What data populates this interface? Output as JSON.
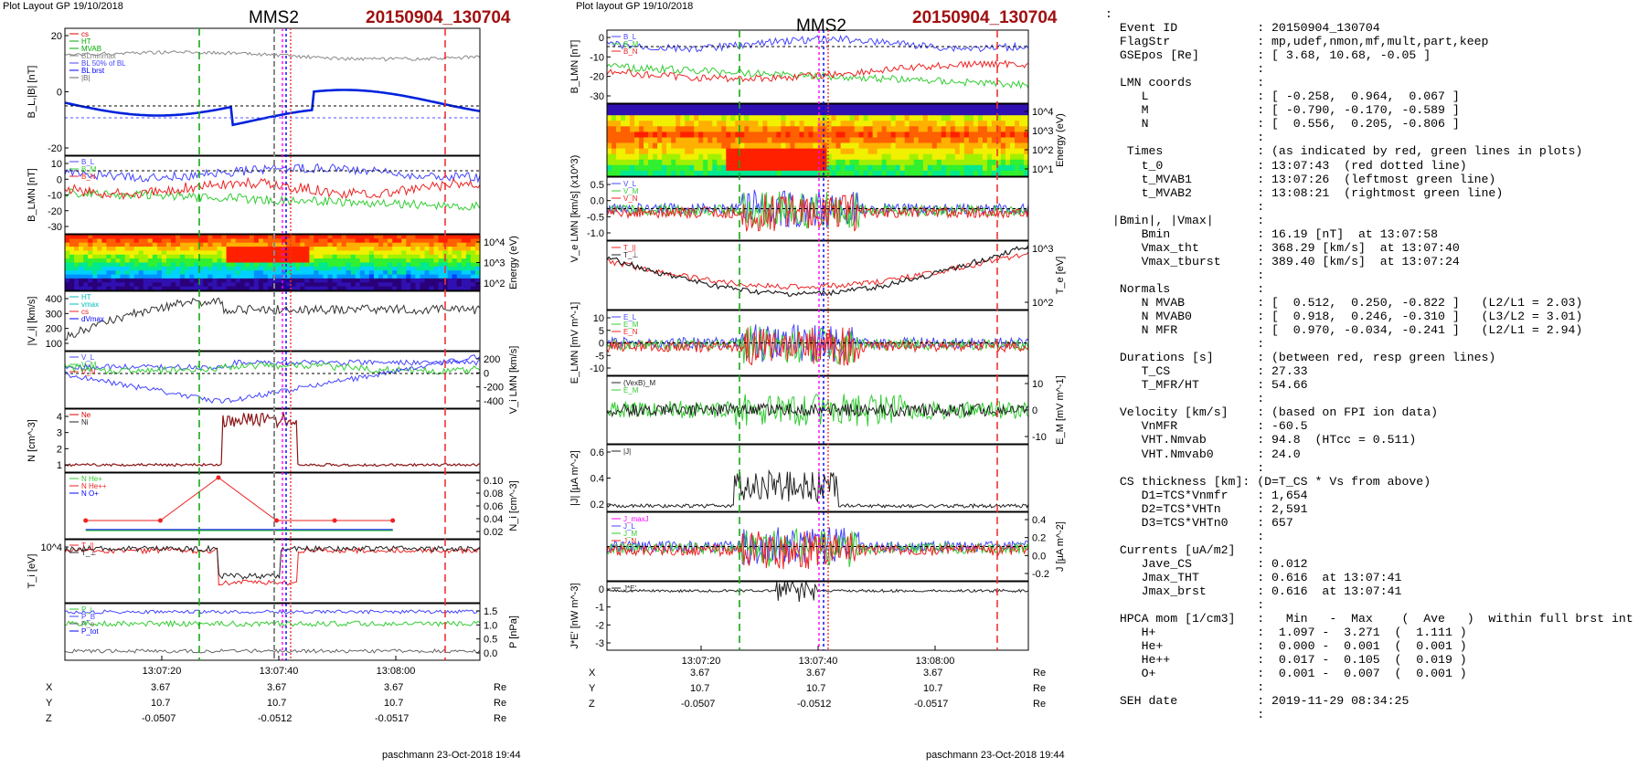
{
  "left": {
    "plot_layout": "Plot Layout GP 19/10/2018",
    "spacecraft": "MMS2",
    "event": "20150904_130704",
    "footer": "paschmann 23-Oct-2018 19:44",
    "time_ticks": [
      "13:07:20",
      "13:07:40",
      "13:08:00"
    ],
    "ephem": [
      {
        "label": "X",
        "values": [
          "3.67",
          "3.67",
          "3.67"
        ],
        "unit": "Re"
      },
      {
        "label": "Y",
        "values": [
          "10.7",
          "10.7",
          "10.7"
        ],
        "unit": "Re"
      },
      {
        "label": "Z",
        "values": [
          "-0.0507",
          "-0.0512",
          "-0.0517"
        ],
        "unit": "Re"
      }
    ]
  },
  "middle": {
    "plot_layout": "Plot layout GP 19/10/2018",
    "spacecraft": "MMS2",
    "event": "20150904_130704",
    "footer": "paschmann 23-Oct-2018 19:44",
    "time_ticks": [
      "13:07:20",
      "13:07:40",
      "13:08:00"
    ],
    "ephem": [
      {
        "label": "X",
        "values": [
          "3.67",
          "3.67",
          "3.67"
        ],
        "unit": "Re"
      },
      {
        "label": "Y",
        "values": [
          "10.7",
          "10.7",
          "10.7"
        ],
        "unit": "Re"
      },
      {
        "label": "Z",
        "values": [
          "-0.0507",
          "-0.0512",
          "-0.0517"
        ],
        "unit": "Re"
      }
    ]
  },
  "chart_data": [
    {
      "type": "line",
      "panels": [
        {
          "ylabel": "B_L,|B| [nT]",
          "ticks": [
            "20",
            "0",
            "-20"
          ],
          "legend": [
            "cs",
            "HT",
            "MVAB",
            "BLminmax",
            "BL 50% of BL",
            "BL brst",
            "|B|"
          ]
        },
        {
          "ylabel": "B_LMN [nT]",
          "ticks": [
            "10",
            "0",
            "-10",
            "-20",
            "-30"
          ],
          "legend": [
            "B_L",
            "B_M",
            "B_N"
          ]
        },
        {
          "ylabel": "Energy (eV)",
          "ticks": [
            "10^4",
            "10^3",
            "10^2"
          ],
          "type": "heatmap"
        },
        {
          "ylabel": "|V_i| [km/s]",
          "ticks": [
            "400",
            "300",
            "200",
            "100"
          ],
          "legend": [
            "HT",
            "vmax",
            "cs",
            "dVmax"
          ]
        },
        {
          "ylabel": "V_i LMN [km/s]",
          "ticks": [
            "200",
            "0",
            "-200",
            "-400"
          ],
          "legend": [
            "V_L",
            "V_M",
            "V_N"
          ]
        },
        {
          "ylabel": "N [cm^-3]",
          "ticks": [
            "4",
            "3",
            "2",
            "1"
          ],
          "legend": [
            "Ne",
            "Ni"
          ]
        },
        {
          "ylabel": "N_i [cm^-3]",
          "ticks": [
            "0.10",
            "0.08",
            "0.06",
            "0.04",
            "0.02"
          ],
          "legend": [
            "N He+",
            "N He++",
            "N O+"
          ]
        },
        {
          "ylabel": "T_i [eV]",
          "ticks": [
            "10^4"
          ],
          "legend": [
            "T_||",
            "T_⊥"
          ]
        },
        {
          "ylabel": "P [nPa]",
          "ticks": [
            "1.5",
            "1.0",
            "0.5",
            "0.0"
          ],
          "legend": [
            "P_i",
            "P_B",
            "P_e",
            "P_tot"
          ]
        }
      ],
      "x": {
        "ticks": [
          "13:07:20",
          "13:07:40",
          "13:08:00"
        ]
      }
    },
    {
      "type": "line",
      "panels": [
        {
          "ylabel": "B_LMN [nT]",
          "ticks": [
            "0",
            "-10",
            "-20",
            "-30"
          ],
          "legend": [
            "B_L",
            "B_M",
            "B_N"
          ]
        },
        {
          "ylabel": "Energy (eV)",
          "ticks": [
            "10^4",
            "10^3",
            "10^2",
            "10^1"
          ],
          "type": "heatmap"
        },
        {
          "ylabel": "V_e LMN [km/s] (x10^3)",
          "ticks": [
            "0.5",
            "0.0",
            "-0.5",
            "-1.0"
          ],
          "legend": [
            "V_L",
            "V_M",
            "V_N"
          ]
        },
        {
          "ylabel": "T_e [eV]",
          "ticks": [
            "10^3",
            "10^2"
          ],
          "legend": [
            "T_||",
            "T_⊥"
          ]
        },
        {
          "ylabel": "E_LMN [mV m^-1]",
          "ticks": [
            "10",
            "5",
            "0",
            "-5",
            "-10"
          ],
          "legend": [
            "E_L",
            "E_M",
            "E_N"
          ]
        },
        {
          "ylabel": "E_M [mV m^-1]",
          "ticks": [
            "10",
            "0",
            "-10"
          ],
          "legend": [
            "(VexB)_M",
            "E_M"
          ]
        },
        {
          "ylabel": "|J| [µA m^-2]",
          "ticks": [
            "0.6",
            "0.4",
            "0.2"
          ],
          "legend": [
            "|J|"
          ]
        },
        {
          "ylabel": "J [µA m^-2]",
          "ticks": [
            "0.4",
            "0.2",
            "0.0",
            "-0.2"
          ],
          "legend": [
            "J_maxJ",
            "J_L",
            "J_M",
            "J_N"
          ]
        },
        {
          "ylabel": "J*E' [nW m^-3]",
          "ticks": [
            "0",
            "-1",
            "-2",
            "-3"
          ],
          "legend": [
            "J*E'"
          ]
        }
      ],
      "x": {
        "ticks": [
          "13:07:20",
          "13:07:40",
          "13:08:00"
        ]
      }
    }
  ],
  "summary": {
    "lines": [
      ":",
      "  Event ID           : 20150904_130704",
      "  FlagStr            : mp,udef,nmon,mf,mult,part,keep",
      "  GSEpos [Re]        : [ 3.68, 10.68, -0.05 ]",
      "                     :",
      "  LMN coords         :",
      "     L               : [ -0.258,  0.964,  0.067 ]",
      "     M               : [ -0.790, -0.170, -0.589 ]",
      "     N               : [  0.556,  0.205, -0.806 ]",
      "                     :",
      "   Times             : (as indicated by red, green lines in plots)",
      "     t_0             : 13:07:43  (red dotted line)",
      "     t_MVAB1         : 13:07:26  (leftmost green line)",
      "     t_MVAB2         : 13:08:21  (rightmost green line)",
      "                     :",
      " |Bmin|, |Vmax|      :",
      "     Bmin            : 16.19 [nT]  at 13:07:58",
      "     Vmax_tht        : 368.29 [km/s]  at 13:07:40",
      "     Vmax_tburst     : 389.40 [km/s]  at 13:07:24",
      "                     :",
      "  Normals            :",
      "     N MVAB          : [  0.512,  0.250, -0.822 ]   (L2/L1 = 2.03)",
      "     N MVAB0         : [  0.918,  0.246, -0.310 ]   (L3/L2 = 3.01)",
      "     N MFR           : [  0.970, -0.034, -0.241 ]   (L2/L1 = 2.94)",
      "                     :",
      "  Durations [s]      : (between red, resp green lines)",
      "     T_CS            : 27.33",
      "     T_MFR/HT        : 54.66",
      "                     :",
      "  Velocity [km/s]    : (based on FPI ion data)",
      "     VnMFR           : -60.5",
      "     VHT.Nmvab       : 94.8  (HTcc = 0.511)",
      "     VHT.Nmvab0      : 24.0",
      "                     :",
      "  CS thickness [km]: (D=T_CS * Vs from above)",
      "     D1=TCS*Vnmfr    : 1,654",
      "     D2=TCS*VHTn     : 2,591",
      "     D3=TCS*VHTn0    : 657",
      "                     :",
      "  Currents [uA/m2]   :",
      "     Jave_CS         : 0.012",
      "     Jmax_THT        : 0.616  at 13:07:41",
      "     Jmax_brst       : 0.616  at 13:07:41",
      "                     :",
      "  HPCA mom [1/cm3]   :   Min   -  Max    (  Ave   )  within full brst int",
      "     H+              :  1.097 -  3.271  (  1.111 )",
      "     He+             :  0.000 -  0.001  (  0.001 )",
      "     He++            :  0.017 -  0.105  (  0.019 )",
      "     O+              :  0.001 -  0.007  (  0.001 )",
      "                     :",
      "  SEH date           : 2019-11-29 08:34:25",
      "                     :"
    ]
  }
}
